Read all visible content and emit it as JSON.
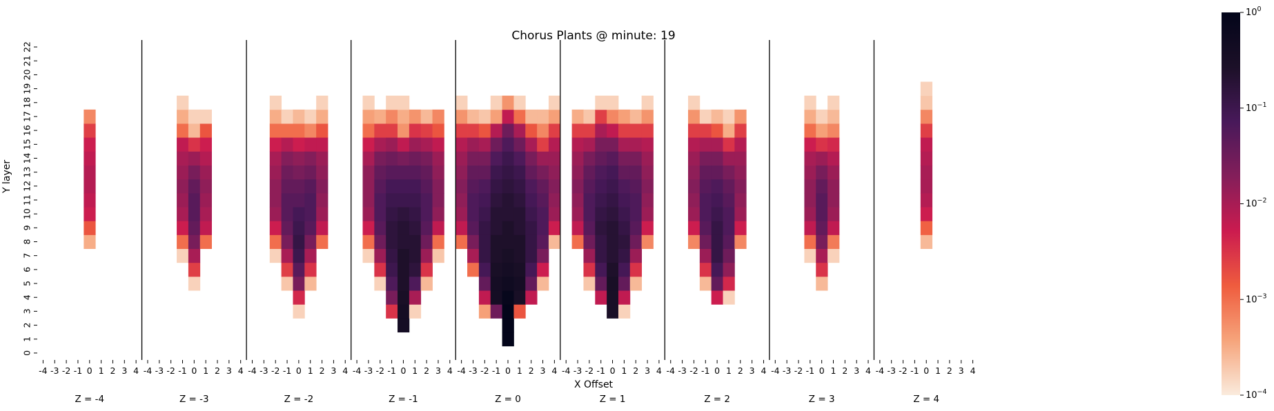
{
  "chart_data": {
    "type": "heatmap",
    "title": "Chorus Plants @ minute: 19",
    "xlabel": "X Offset",
    "ylabel": "Y layer",
    "x_ticks": [
      "-4",
      "-3",
      "-2",
      "-1",
      "0",
      "1",
      "2",
      "3",
      "4"
    ],
    "y_ticks": [
      "0",
      "1",
      "2",
      "3",
      "4",
      "5",
      "6",
      "7",
      "8",
      "9",
      "10",
      "11",
      "12",
      "13",
      "14",
      "15",
      "16",
      "17",
      "18",
      "19",
      "20",
      "21",
      "22"
    ],
    "color_scale": "log",
    "colorbar_ticks": [
      {
        "base": "10",
        "exp": "−4",
        "value": 0.0001
      },
      {
        "base": "10",
        "exp": "−3",
        "value": 0.001
      },
      {
        "base": "10",
        "exp": "−2",
        "value": 0.01
      },
      {
        "base": "10",
        "exp": "−1",
        "value": 0.1
      },
      {
        "base": "10",
        "exp": "0",
        "value": 1
      }
    ],
    "vmin": 0.0001,
    "vmax": 1,
    "colormap": [
      "#faebdd",
      "#f6a47b",
      "#ef5c3e",
      "#cb1b4f",
      "#841e5a",
      "#48195a",
      "#1c1028",
      "#03051a"
    ],
    "panels": [
      {
        "label": "Z = -4",
        "columns": [
          null,
          null,
          null,
          null,
          {
            "start": 8,
            "values": [
              -3.5,
              -2.8,
              -2.3,
              -2.2,
              -2.1,
              -2.1,
              -2.2,
              -2.3,
              -2.6,
              -3.2
            ]
          },
          null,
          null,
          null,
          null
        ]
      },
      {
        "label": "Z = -3",
        "columns": [
          null,
          null,
          null,
          {
            "start": 7,
            "values": [
              -3.8,
              -3.0,
              -2.3,
              -2.0,
              -1.9,
              -1.8,
              -1.9,
              -2.0,
              -2.2,
              -3.0,
              -3.5,
              -3.8
            ]
          },
          {
            "start": 5,
            "values": [
              -3.8,
              -2.6,
              -2.0,
              -1.6,
              -1.4,
              -1.3,
              -1.3,
              -1.4,
              -1.6,
              -1.9,
              -2.5,
              -3.6,
              -3.8
            ]
          },
          {
            "start": 8,
            "values": [
              -3.0,
              -2.2,
              -2.0,
              -1.9,
              -1.8,
              -1.9,
              -2.1,
              -2.3,
              -2.8,
              -3.8
            ]
          },
          null,
          null,
          null
        ]
      },
      {
        "label": "Z = -2",
        "columns": [
          null,
          null,
          {
            "start": 7,
            "values": [
              -3.8,
              -3.0,
              -2.3,
              -1.9,
              -1.8,
              -1.8,
              -1.9,
              -2.0,
              -2.3,
              -3.0,
              -3.5,
              -3.8
            ]
          },
          {
            "start": 5,
            "values": [
              -3.7,
              -2.6,
              -2.0,
              -1.6,
              -1.4,
              -1.3,
              -1.3,
              -1.4,
              -1.5,
              -1.7,
              -2.1,
              -3.0,
              -3.8
            ]
          },
          {
            "start": 3,
            "values": [
              -3.8,
              -2.4,
              -1.6,
              -1.3,
              -1.0,
              -0.9,
              -1.0,
              -1.1,
              -1.3,
              -1.4,
              -1.6,
              -1.8,
              -2.3,
              -3.0,
              -3.6
            ]
          },
          {
            "start": 5,
            "values": [
              -3.6,
              -2.5,
              -2.0,
              -1.6,
              -1.3,
              -1.2,
              -1.2,
              -1.3,
              -1.5,
              -1.7,
              -2.2,
              -3.2,
              -3.8
            ]
          },
          {
            "start": 8,
            "values": [
              -3.0,
              -2.2,
              -1.9,
              -1.8,
              -1.7,
              -1.8,
              -1.9,
              -2.2,
              -2.8,
              -3.5,
              -3.8
            ]
          },
          null,
          null
        ]
      },
      {
        "label": "Z = -1",
        "columns": [
          null,
          {
            "start": 7,
            "values": [
              -3.8,
              -3.0,
              -2.3,
              -1.9,
              -1.8,
              -1.8,
              -1.8,
              -2.0,
              -2.3,
              -3.0,
              -3.4,
              -3.8
            ]
          },
          {
            "start": 5,
            "values": [
              -3.8,
              -2.5,
              -1.9,
              -1.5,
              -1.3,
              -1.2,
              -1.2,
              -1.3,
              -1.4,
              -1.6,
              -2.0,
              -2.6,
              -3.5
            ]
          },
          {
            "start": 3,
            "values": [
              -2.5,
              -1.6,
              -1.2,
              -1.0,
              -0.9,
              -0.8,
              -0.8,
              -0.9,
              -1.0,
              -1.1,
              -1.3,
              -1.5,
              -1.9,
              -2.6,
              -3.2,
              -3.8
            ]
          },
          {
            "start": 2,
            "values": [
              -0.4,
              -0.4,
              -0.5,
              -0.6,
              -0.6,
              -0.6,
              -0.7,
              -0.7,
              -0.8,
              -1.0,
              -1.1,
              -1.3,
              -1.6,
              -2.2,
              -3.3,
              -3.5,
              -3.8
            ]
          },
          {
            "start": 3,
            "values": [
              -3.8,
              -2.0,
              -1.2,
              -0.8,
              -0.7,
              -0.7,
              -0.8,
              -0.9,
              -1.0,
              -1.1,
              -1.3,
              -1.5,
              -1.9,
              -2.5,
              -3.3
            ]
          },
          {
            "start": 5,
            "values": [
              -3.6,
              -2.5,
              -1.9,
              -1.5,
              -1.3,
              -1.2,
              -1.2,
              -1.3,
              -1.4,
              -1.6,
              -2.0,
              -2.6,
              -3.6
            ]
          },
          {
            "start": 7,
            "values": [
              -3.7,
              -3.0,
              -2.2,
              -1.8,
              -1.7,
              -1.7,
              -1.8,
              -1.9,
              -2.2,
              -2.8,
              -3.2
            ]
          },
          null
        ]
      },
      {
        "label": "Z = 0",
        "columns": [
          {
            "start": 8,
            "values": [
              -3.0,
              -2.2,
              -1.9,
              -1.8,
              -1.7,
              -1.8,
              -1.9,
              -2.1,
              -2.6,
              -3.3,
              -3.8
            ]
          },
          {
            "start": 6,
            "values": [
              -3.0,
              -2.0,
              -1.6,
              -1.3,
              -1.2,
              -1.2,
              -1.3,
              -1.4,
              -1.6,
              -1.9,
              -2.6,
              -3.6
            ]
          },
          {
            "start": 3,
            "values": [
              -3.4,
              -2.2,
              -1.4,
              -1.1,
              -0.9,
              -0.9,
              -0.9,
              -1.0,
              -1.1,
              -1.2,
              -1.4,
              -1.6,
              -2.0,
              -2.8,
              -3.7
            ]
          },
          {
            "start": 3,
            "values": [
              -1.5,
              -0.4,
              -0.4,
              -0.5,
              -0.6,
              -0.6,
              -0.7,
              -0.7,
              -0.8,
              -0.9,
              -1.0,
              -1.2,
              -1.5,
              -2.1,
              -3.4,
              -3.8
            ]
          },
          {
            "start": 1,
            "values": [
              0,
              0,
              0,
              -0.1,
              -0.3,
              -0.4,
              -0.5,
              -0.6,
              -0.6,
              -0.7,
              -0.7,
              -0.8,
              -0.9,
              -1.0,
              -1.2,
              -1.5,
              -2.2,
              -3.3
            ]
          },
          {
            "start": 3,
            "values": [
              -2.8,
              -0.5,
              -0.4,
              -0.5,
              -0.6,
              -0.6,
              -0.7,
              -0.7,
              -0.8,
              -0.9,
              -1.0,
              -1.2,
              -1.5,
              -2.0,
              -3.0,
              -3.8
            ]
          },
          {
            "start": 4,
            "values": [
              -2.2,
              -1.4,
              -1.1,
              -0.9,
              -0.9,
              -0.9,
              -1.0,
              -1.1,
              -1.2,
              -1.4,
              -1.6,
              -2.0,
              -2.8,
              -3.6
            ]
          },
          {
            "start": 5,
            "values": [
              -3.6,
              -2.3,
              -1.6,
              -1.3,
              -1.2,
              -1.2,
              -1.3,
              -1.4,
              -1.6,
              -1.9,
              -2.6,
              -3.2,
              -3.6
            ]
          },
          {
            "start": 8,
            "values": [
              -3.6,
              -2.3,
              -1.9,
              -1.8,
              -1.7,
              -1.8,
              -1.9,
              -2.1,
              -2.6,
              -3.4,
              -3.8
            ]
          }
        ]
      },
      {
        "label": "Z = 1",
        "columns": [
          null,
          {
            "start": 8,
            "values": [
              -3.0,
              -2.2,
              -1.9,
              -1.8,
              -1.7,
              -1.8,
              -1.9,
              -2.1,
              -2.6,
              -3.5
            ]
          },
          {
            "start": 5,
            "values": [
              -3.7,
              -2.5,
              -1.9,
              -1.5,
              -1.3,
              -1.2,
              -1.2,
              -1.3,
              -1.4,
              -1.6,
              -2.0,
              -2.6,
              -3.7
            ]
          },
          {
            "start": 4,
            "values": [
              -2.2,
              -1.4,
              -1.1,
              -0.9,
              -0.9,
              -0.8,
              -0.9,
              -1.0,
              -1.1,
              -1.2,
              -1.4,
              -1.6,
              -2.0,
              -2.6,
              -3.8
            ]
          },
          {
            "start": 3,
            "values": [
              -0.5,
              -0.5,
              -0.5,
              -0.6,
              -0.7,
              -0.7,
              -0.7,
              -0.8,
              -0.9,
              -1.0,
              -1.1,
              -1.3,
              -1.6,
              -2.2,
              -3.2,
              -3.8
            ]
          },
          {
            "start": 3,
            "values": [
              -3.8,
              -2.2,
              -1.4,
              -1.1,
              -0.9,
              -0.8,
              -0.9,
              -1.0,
              -1.1,
              -1.2,
              -1.4,
              -1.6,
              -2.0,
              -2.6,
              -3.4
            ]
          },
          {
            "start": 5,
            "values": [
              -3.6,
              -2.5,
              -1.9,
              -1.5,
              -1.3,
              -1.2,
              -1.2,
              -1.3,
              -1.4,
              -1.6,
              -2.0,
              -2.6,
              -3.6
            ]
          },
          {
            "start": 8,
            "values": [
              -3.2,
              -2.3,
              -1.9,
              -1.8,
              -1.7,
              -1.8,
              -1.9,
              -2.1,
              -2.6,
              -3.3,
              -3.8
            ]
          },
          null
        ]
      },
      {
        "label": "Z = 2",
        "columns": [
          null,
          null,
          {
            "start": 8,
            "values": [
              -3.2,
              -2.3,
              -1.9,
              -1.8,
              -1.7,
              -1.8,
              -1.9,
              -2.1,
              -2.6,
              -3.3,
              -3.8
            ]
          },
          {
            "start": 5,
            "values": [
              -3.6,
              -2.5,
              -1.9,
              -1.5,
              -1.3,
              -1.2,
              -1.2,
              -1.3,
              -1.4,
              -1.6,
              -2.0,
              -2.6,
              -3.8
            ]
          },
          {
            "start": 4,
            "values": [
              -2.3,
              -1.4,
              -1.1,
              -0.9,
              -0.9,
              -0.9,
              -1.0,
              -1.1,
              -1.2,
              -1.4,
              -1.6,
              -2.0,
              -2.8,
              -3.6
            ]
          },
          {
            "start": 4,
            "values": [
              -3.8,
              -2.4,
              -1.8,
              -1.5,
              -1.3,
              -1.2,
              -1.2,
              -1.3,
              -1.4,
              -1.6,
              -1.9,
              -2.5,
              -3.5,
              -3.8
            ]
          },
          {
            "start": 8,
            "values": [
              -3.2,
              -2.3,
              -1.9,
              -1.8,
              -1.7,
              -1.8,
              -1.9,
              -2.1,
              -2.6,
              -3.3
            ]
          },
          null,
          null
        ]
      },
      {
        "label": "Z = 3",
        "columns": [
          null,
          null,
          null,
          {
            "start": 7,
            "values": [
              -3.8,
              -3.0,
              -2.2,
              -1.9,
              -1.8,
              -1.8,
              -1.9,
              -2.0,
              -2.3,
              -3.0,
              -3.5,
              -3.8
            ]
          },
          {
            "start": 5,
            "values": [
              -3.6,
              -2.5,
              -2.0,
              -1.6,
              -1.4,
              -1.3,
              -1.3,
              -1.4,
              -1.6,
              -1.9,
              -2.5,
              -3.4,
              -3.8
            ]
          },
          {
            "start": 7,
            "values": [
              -3.8,
              -3.1,
              -2.2,
              -1.9,
              -1.8,
              -1.8,
              -1.9,
              -2.1,
              -2.4,
              -3.2,
              -3.6,
              -3.8
            ]
          },
          null,
          null,
          null
        ]
      },
      {
        "label": "Z = 4",
        "columns": [
          null,
          null,
          null,
          null,
          {
            "start": 8,
            "values": [
              -3.6,
              -2.9,
              -2.3,
              -2.1,
              -2.0,
              -2.0,
              -2.1,
              -2.2,
              -2.6,
              -3.2,
              -3.7,
              -3.8
            ]
          },
          null,
          null,
          null,
          null
        ]
      }
    ]
  }
}
